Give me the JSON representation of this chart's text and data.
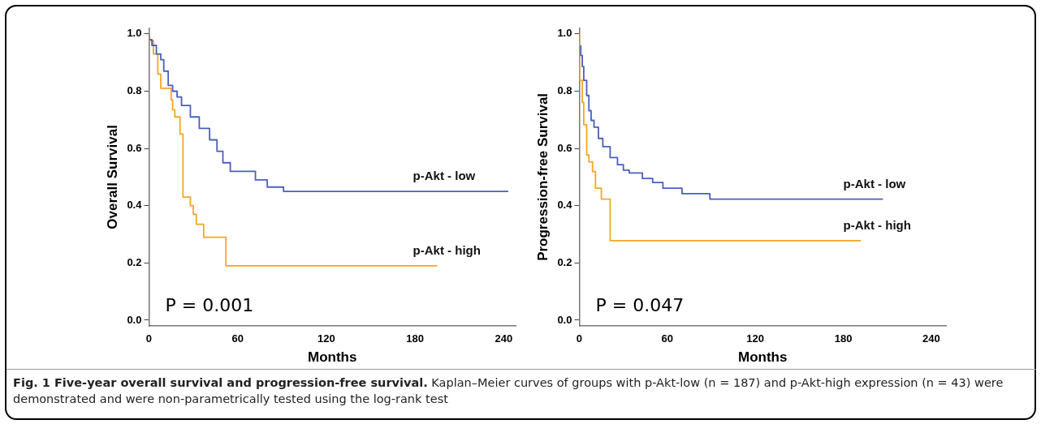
{
  "chart_data": [
    {
      "type": "step",
      "ylabel": "Overall Survival",
      "xlabel": "Months",
      "xlim": [
        0,
        248
      ],
      "xticks": [
        0,
        60,
        120,
        180,
        240
      ],
      "ylim": [
        -0.02,
        1.02
      ],
      "yticks": [
        {
          "value": 0,
          "label": "0.0"
        },
        {
          "value": 0.2,
          "label": "0.2"
        },
        {
          "value": 0.4,
          "label": "0.4"
        },
        {
          "value": 0.6,
          "label": "0.6"
        },
        {
          "value": 0.8,
          "label": "0.8"
        },
        {
          "value": 1,
          "label": "1.0"
        }
      ],
      "grid": false,
      "legend": false,
      "marker": "none",
      "line_style": "solid",
      "annotations": [
        "P = 0.001",
        "Fig. 1 Five-year overall survival and progression-free survival.",
        "Kaplan–Meier curves of groups with p-Akt-low (n = 187) and p-Akt-high expression (n = 43) were demonstrated and were non-parametrically tested using the log-rank test"
      ],
      "series": [
        {
          "name": "p-Akt - low",
          "color": "#4a5fbf",
          "x": [
            0,
            2,
            5,
            8,
            10,
            13,
            16,
            19,
            22,
            28,
            34,
            41,
            46,
            50,
            55,
            72,
            80,
            91,
            108,
            243
          ],
          "values": [
            1,
            0.98,
            0.96,
            0.93,
            0.91,
            0.87,
            0.82,
            0.8,
            0.78,
            0.75,
            0.71,
            0.67,
            0.63,
            0.59,
            0.55,
            0.52,
            0.49,
            0.465,
            0.45,
            0.45
          ]
        },
        {
          "name": "p-Akt - high",
          "color": "#f5a623",
          "x": [
            0,
            3,
            6,
            8,
            15,
            16,
            17.5,
            21,
            23,
            28,
            30,
            32,
            37,
            52,
            115,
            195
          ],
          "values": [
            1,
            0.977,
            0.93,
            0.86,
            0.81,
            0.77,
            0.735,
            0.71,
            0.65,
            0.43,
            0.4,
            0.37,
            0.335,
            0.29,
            0.19,
            0.19
          ]
        }
      ]
    },
    {
      "type": "step",
      "ylabel": "Progression-free Survival",
      "xlabel": "Months",
      "xlim": [
        0,
        250
      ],
      "xticks": [
        0,
        60,
        120,
        180,
        240
      ],
      "ylim": [
        -0.02,
        1.02
      ],
      "yticks": [
        {
          "value": 0,
          "label": "0.0"
        },
        {
          "value": 0.2,
          "label": "0.2"
        },
        {
          "value": 0.4,
          "label": "0.4"
        },
        {
          "value": 0.6,
          "label": "0.6"
        },
        {
          "value": 0.8,
          "label": "0.8"
        },
        {
          "value": 1,
          "label": "1.0"
        }
      ],
      "grid": false,
      "legend": false,
      "marker": "none",
      "line_style": "solid",
      "annotations": [
        "P = 0.047"
      ],
      "series": [
        {
          "name": "p-Akt - low",
          "color": "#4a5fbf",
          "x": [
            1,
            2,
            3,
            5,
            6.5,
            8,
            10,
            13,
            16,
            21,
            26,
            30,
            34,
            43,
            50,
            57,
            70,
            89,
            100,
            207
          ],
          "values": [
            0.96,
            0.925,
            0.886,
            0.838,
            0.785,
            0.732,
            0.698,
            0.674,
            0.635,
            0.606,
            0.568,
            0.543,
            0.524,
            0.514,
            0.495,
            0.481,
            0.461,
            0.442,
            0.423,
            0.423
          ]
        },
        {
          "name": "p-Akt - high",
          "color": "#f5a623",
          "x": [
            0,
            2,
            3,
            5,
            6.5,
            9,
            11,
            15,
            21,
            77,
            192
          ],
          "values": [
            1,
            0.838,
            0.761,
            0.683,
            0.577,
            0.553,
            0.519,
            0.461,
            0.423,
            0.278,
            0.278
          ]
        }
      ]
    }
  ]
}
